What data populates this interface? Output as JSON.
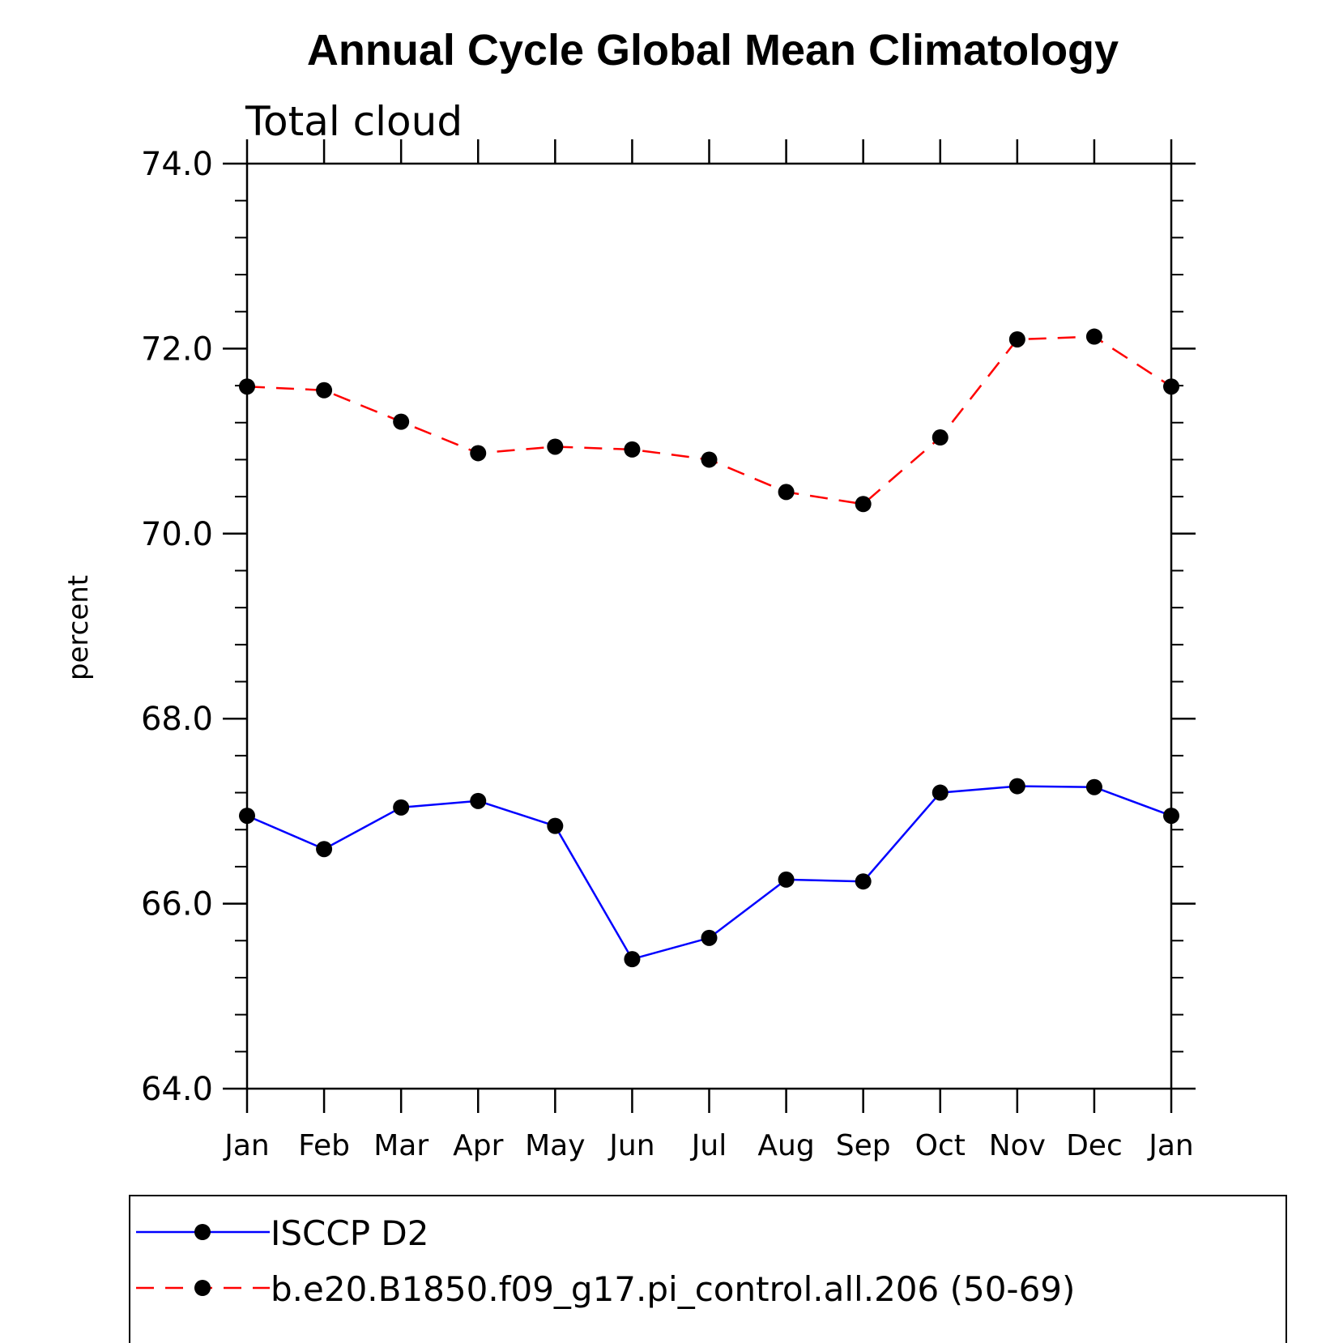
{
  "chart_data": {
    "type": "line",
    "title": "Annual Cycle Global Mean Climatology",
    "subtitle": "Total cloud",
    "ylabel": "percent",
    "xlabel": "",
    "ylim": [
      64.0,
      74.0
    ],
    "y_ticks": [
      "64.0",
      "66.0",
      "68.0",
      "70.0",
      "72.0",
      "74.0"
    ],
    "categories": [
      "Jan",
      "Feb",
      "Mar",
      "Apr",
      "May",
      "Jun",
      "Jul",
      "Aug",
      "Sep",
      "Oct",
      "Nov",
      "Dec",
      "Jan"
    ],
    "grid": false,
    "legend_position": "bottom",
    "series": [
      {
        "name": "ISCCP D2",
        "color": "#0000ff",
        "line_style": "solid",
        "marker": "filled-circle",
        "values": [
          66.95,
          66.59,
          67.04,
          67.11,
          66.84,
          65.4,
          65.63,
          66.26,
          66.24,
          67.2,
          67.27,
          67.26,
          66.95
        ]
      },
      {
        "name": "b.e20.B1850.f09_g17.pi_control.all.206 (50-69)",
        "color": "#ff0000",
        "line_style": "dashed",
        "marker": "filled-circle",
        "values": [
          71.59,
          71.55,
          71.21,
          70.87,
          70.94,
          70.91,
          70.8,
          70.45,
          70.32,
          71.04,
          72.1,
          72.13,
          71.59
        ]
      }
    ]
  }
}
